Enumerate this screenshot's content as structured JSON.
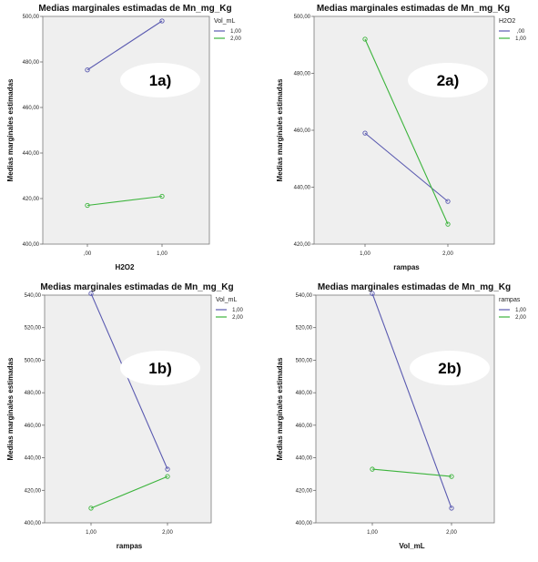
{
  "colors": {
    "series1": "#5a5ab0",
    "series2": "#3cb43c",
    "plot_bg": "#efefef",
    "frame": "#7a7a7a"
  },
  "chart_data": [
    {
      "type": "line",
      "label": "1a)",
      "title": "Medias marginales estimadas de Mn_mg_Kg",
      "xlabel": "H2O2",
      "ylabel": "Medias marginales estimadas",
      "categories": [
        ",00",
        "1,00"
      ],
      "ylim": [
        400,
        500
      ],
      "yticks": [
        "400,00",
        "420,00",
        "440,00",
        "460,00",
        "480,00",
        "500,00"
      ],
      "ytick_values": [
        400,
        420,
        440,
        460,
        480,
        500
      ],
      "legend_title": "Vol_mL",
      "legend_position": "top-right",
      "series": [
        {
          "name": "1,00",
          "values": [
            476.5,
            498
          ]
        },
        {
          "name": "2,00",
          "values": [
            417,
            421
          ]
        }
      ]
    },
    {
      "type": "line",
      "label": "2a)",
      "title": "Medias marginales estimadas de Mn_mg_Kg",
      "xlabel": "rampas",
      "ylabel": "Medias marginales estimadas",
      "categories": [
        "1,00",
        "2,00"
      ],
      "ylim": [
        420,
        500
      ],
      "yticks": [
        "420,00",
        "440,00",
        "460,00",
        "480,00",
        "500,00"
      ],
      "ytick_values": [
        420,
        440,
        460,
        480,
        500
      ],
      "legend_title": "H2O2",
      "legend_position": "top-right",
      "series": [
        {
          "name": ",00",
          "values": [
            459,
            435
          ]
        },
        {
          "name": "1,00",
          "values": [
            492,
            427
          ]
        }
      ]
    },
    {
      "type": "line",
      "label": "1b)",
      "title": "Medias marginales estimadas de Mn_mg_Kg",
      "xlabel": "rampas",
      "ylabel": "Medias marginales estimadas",
      "categories": [
        "1,00",
        "2,00"
      ],
      "ylim": [
        400,
        540
      ],
      "yticks": [
        "400,00",
        "420,00",
        "440,00",
        "460,00",
        "480,00",
        "500,00",
        "520,00",
        "540,00"
      ],
      "ytick_values": [
        400,
        420,
        440,
        460,
        480,
        500,
        520,
        540
      ],
      "legend_title": "Vol_mL",
      "legend_position": "top-right",
      "series": [
        {
          "name": "1,00",
          "values": [
            541,
            433
          ]
        },
        {
          "name": "2,00",
          "values": [
            409,
            428.5
          ]
        }
      ]
    },
    {
      "type": "line",
      "label": "2b)",
      "title": "Medias marginales estimadas de Mn_mg_Kg",
      "xlabel": "Vol_mL",
      "ylabel": "Medias marginales estimadas",
      "categories": [
        "1,00",
        "2,00"
      ],
      "ylim": [
        400,
        540
      ],
      "yticks": [
        "400,00",
        "420,00",
        "440,00",
        "460,00",
        "480,00",
        "500,00",
        "520,00",
        "540,00"
      ],
      "ytick_values": [
        400,
        420,
        440,
        460,
        480,
        500,
        520,
        540
      ],
      "legend_title": "rampas",
      "legend_position": "top-right",
      "series": [
        {
          "name": "1,00",
          "values": [
            541,
            409
          ]
        },
        {
          "name": "2,00",
          "values": [
            433,
            428.5
          ]
        }
      ]
    }
  ]
}
